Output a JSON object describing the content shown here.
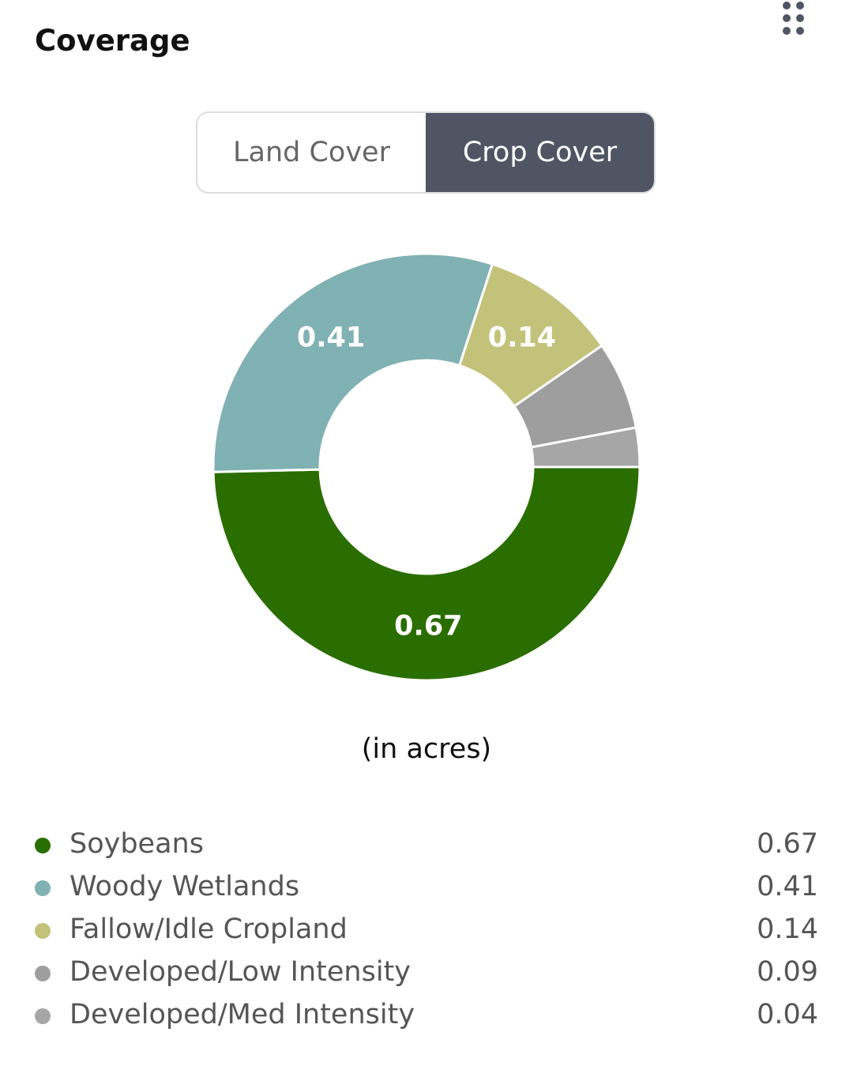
{
  "header": {
    "title": "Coverage"
  },
  "tabs": [
    {
      "label": "Land Cover"
    },
    {
      "label": "Crop Cover"
    }
  ],
  "active_tab": 1,
  "chart_data": {
    "type": "donut",
    "categories": [
      "Soybeans",
      "Woody Wetlands",
      "Fallow/Idle Cropland",
      "Developed/Low Intensity",
      "Developed/Med Intensity"
    ],
    "values": [
      0.67,
      0.41,
      0.14,
      0.09,
      0.04
    ],
    "colors": [
      "#2a6e00",
      "#80b1b3",
      "#c2c27a",
      "#9e9e9e",
      "#a6a6a6"
    ],
    "note": "(in acres)"
  }
}
